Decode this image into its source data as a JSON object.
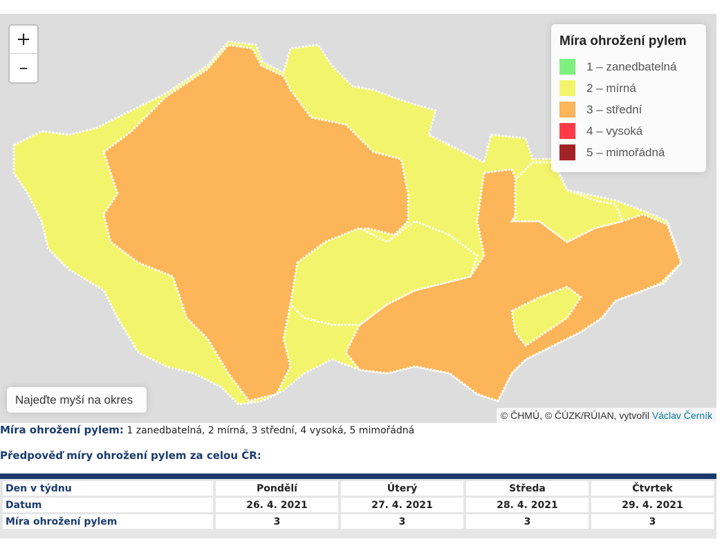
{
  "map": {
    "zoom_in_label": "+",
    "zoom_out_label": "–",
    "hover_hint": "Najeďte myší na okres",
    "attribution_prefix": "© ČHMÚ, © ČÚZK/RÚIAN, vytvořil ",
    "attribution_author": "Václav Černík",
    "colors": {
      "1": "#7ef07e",
      "2": "#f2f56b",
      "3": "#fcb558",
      "4": "#ff3b47",
      "5": "#a12326",
      "background": "#dddddd",
      "border": "#ffffff"
    },
    "regions_summary": {
      "mirna_level": 2,
      "stredni_level": 3
    }
  },
  "legend": {
    "title": "Míra ohrožení pylem",
    "items": [
      {
        "label": "1 – zanedbatelná",
        "color": "#7ef07e"
      },
      {
        "label": "2 – mírná",
        "color": "#f2f56b"
      },
      {
        "label": "3 – střední",
        "color": "#fcb558"
      },
      {
        "label": "4 – vysoká",
        "color": "#ff3b47"
      },
      {
        "label": "5 – mimořádná",
        "color": "#a12326"
      }
    ]
  },
  "scale_note": {
    "label": "Míra ohrožení pylem:",
    "text": " 1 zanedbatelná, 2 mírná, 3 střední, 4 vysoká, 5 mimořádná"
  },
  "forecast": {
    "title": "Předpověď míry ohrožení pylem za celou ČR:",
    "rows": [
      {
        "label": "Den v týdnu",
        "cells": [
          "Pondělí",
          "Úterý",
          "Středa",
          "Čtvrtek"
        ]
      },
      {
        "label": "Datum",
        "cells": [
          "26. 4. 2021",
          "27. 4. 2021",
          "28. 4. 2021",
          "29. 4. 2021"
        ]
      },
      {
        "label": "Míra ohrožení pylem",
        "cells": [
          "3",
          "3",
          "3",
          "3"
        ]
      }
    ]
  }
}
